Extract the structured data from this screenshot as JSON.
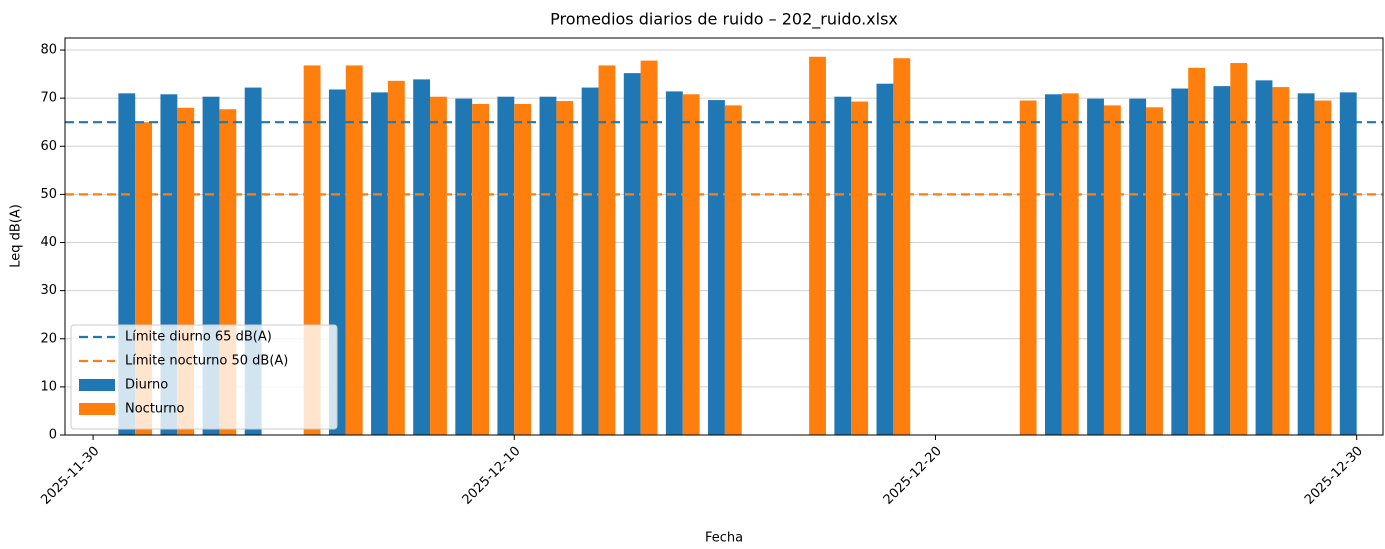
{
  "chart_data": {
    "type": "bar",
    "title": "Promedios diarios de ruido – 202_ruido.xlsx",
    "xlabel": "Fecha",
    "ylabel": "Leq dB(A)",
    "x": [
      "2025-12-01",
      "2025-12-02",
      "2025-12-03",
      "2025-12-04",
      "2025-12-05",
      "2025-12-06",
      "2025-12-07",
      "2025-12-08",
      "2025-12-09",
      "2025-12-10",
      "2025-12-11",
      "2025-12-12",
      "2025-12-13",
      "2025-12-14",
      "2025-12-15",
      "2025-12-16",
      "2025-12-17",
      "2025-12-18",
      "2025-12-19",
      "2025-12-20",
      "2025-12-21",
      "2025-12-22",
      "2025-12-23",
      "2025-12-24",
      "2025-12-25",
      "2025-12-26",
      "2025-12-27",
      "2025-12-28",
      "2025-12-29",
      "2025-12-30"
    ],
    "series": [
      {
        "name": "Diurno",
        "color": "#1f77b4",
        "values": [
          71,
          70.8,
          70.3,
          72.2,
          null,
          71.8,
          71.2,
          73.9,
          69.9,
          70.3,
          70.3,
          72.2,
          75.2,
          71.4,
          69.6,
          null,
          null,
          70.3,
          73,
          null,
          null,
          null,
          70.8,
          69.9,
          69.9,
          72,
          72.5,
          73.7,
          71,
          71.2
        ]
      },
      {
        "name": "Nocturno",
        "color": "#ff7f0e",
        "values": [
          65,
          68,
          67.7,
          null,
          76.8,
          76.8,
          73.6,
          70.3,
          68.8,
          68.8,
          69.4,
          76.8,
          77.8,
          70.8,
          68.5,
          null,
          78.6,
          69.3,
          78.3,
          null,
          null,
          69.5,
          71,
          68.5,
          68.1,
          76.3,
          77.3,
          72.3,
          69.5,
          null
        ]
      }
    ],
    "hlines": [
      {
        "name": "Límite diurno 65 dB(A)",
        "value": 65,
        "color": "#1f77b4"
      },
      {
        "name": "Límite nocturno 50 dB(A)",
        "value": 50,
        "color": "#ff7f0e"
      }
    ],
    "xlim": [
      "2025-11-29T08:00",
      "2025-12-30T15:00"
    ],
    "xticks": [
      "2025-11-30",
      "2025-12-10",
      "2025-12-20",
      "2025-12-30"
    ],
    "ylim": [
      0,
      82.5
    ],
    "yticks": [
      0,
      10,
      20,
      30,
      40,
      50,
      60,
      70,
      80
    ],
    "grid": true,
    "legend": "lower left"
  }
}
